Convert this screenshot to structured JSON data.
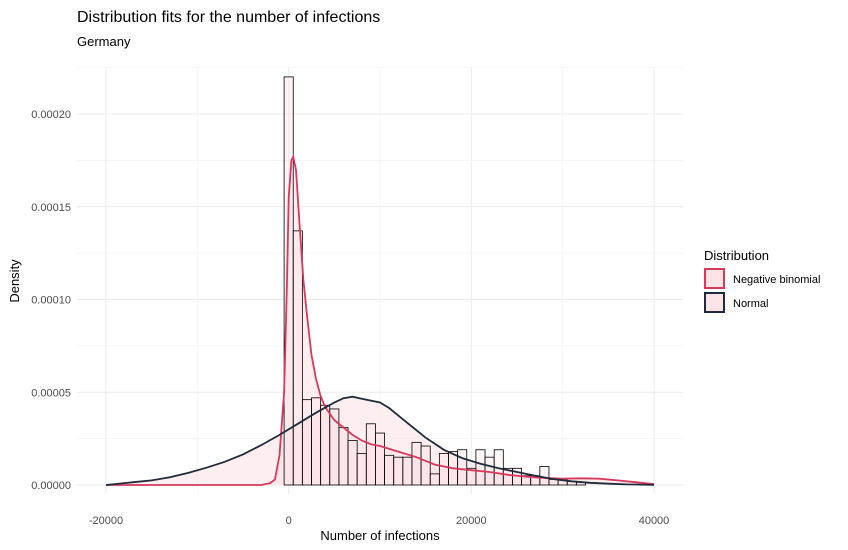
{
  "chart_data": {
    "type": "histogram_with_density",
    "title": "Distribution fits for the number of infections",
    "subtitle": "Germany",
    "xlabel": "Number of infections",
    "ylabel": "Density",
    "xlim": [
      -20000,
      40000
    ],
    "ylim": [
      0,
      0.00023
    ],
    "x_ticks": [
      -20000,
      0,
      20000,
      40000
    ],
    "x_tick_labels": [
      "-20000",
      "0",
      "20000",
      "40000"
    ],
    "y_ticks": [
      0,
      5e-05,
      0.0001,
      0.00015,
      0.0002
    ],
    "y_tick_labels": [
      "0.00000",
      "0.00005",
      "0.00010",
      "0.00015",
      "0.00020"
    ],
    "grid": true,
    "legend_position": "right",
    "legend": {
      "title": "Distribution",
      "entries": [
        {
          "label": "Negative binomial",
          "color": "#d6395e"
        },
        {
          "label": "Normal",
          "color": "#1f2b3c"
        }
      ]
    },
    "histogram": {
      "bin_width": 1000,
      "bin_starts": [
        -500,
        500,
        1500,
        2500,
        3500,
        4500,
        5500,
        6500,
        7500,
        8500,
        9500,
        10500,
        11500,
        12500,
        13500,
        14500,
        15500,
        16500,
        17500,
        18500,
        19500,
        20500,
        21500,
        22500,
        23500,
        24500,
        25500,
        26500,
        27500,
        28500,
        29500,
        30500,
        31500
      ],
      "densities": [
        0.00022,
        0.000137,
        4.6e-05,
        4.7e-05,
        4.3e-05,
        4.1e-05,
        3.1e-05,
        2.4e-05,
        1.7e-05,
        3.3e-05,
        2.8e-05,
        1.6e-05,
        1.5e-05,
        1.5e-05,
        2.3e-05,
        2.1e-05,
        6e-06,
        1.7e-05,
        1.8e-05,
        1.9e-05,
        9e-06,
        1.9e-05,
        1.5e-05,
        1.9e-05,
        9e-06,
        9e-06,
        5e-06,
        5e-06,
        1e-05,
        3e-06,
        3e-06,
        2e-06,
        1.5e-06
      ]
    },
    "series": [
      {
        "name": "Negative binomial",
        "color": "#d6395e",
        "fill": "#fbe3e6",
        "x": [
          -20000,
          -3000,
          -2000,
          -1500,
          -1000,
          -500,
          -200,
          0,
          300,
          500,
          800,
          1200,
          1600,
          2000,
          2500,
          3000,
          3500,
          4000,
          5000,
          6000,
          7000,
          8000,
          9000,
          10000,
          12000,
          14000,
          16000,
          18000,
          20000,
          22000,
          24000,
          26000,
          28000,
          30000,
          32000,
          34000,
          36000,
          38000,
          40000
        ],
        "y": [
          0,
          0,
          1e-06,
          3e-06,
          1.6e-05,
          5e-05,
          0.000105,
          0.000155,
          0.000175,
          0.000177,
          0.00017,
          0.00014,
          0.000111,
          9.2e-05,
          7e-05,
          5.7e-05,
          4.8e-05,
          4.2e-05,
          3.5e-05,
          3.1e-05,
          2.7e-05,
          2.4e-05,
          2.2e-05,
          2.1e-05,
          1.8e-05,
          1.5e-05,
          1.1e-05,
          9e-06,
          8e-06,
          7e-06,
          5.5e-06,
          4.5e-06,
          3.8e-06,
          3.4e-06,
          3.6e-06,
          3.4e-06,
          2.5e-06,
          1.5e-06,
          5e-07
        ]
      },
      {
        "name": "Normal",
        "color": "#1f2b3c",
        "fill": "#fbe3e6",
        "x": [
          -20000,
          -17000,
          -15000,
          -13000,
          -11000,
          -9000,
          -7000,
          -5000,
          -3000,
          -1000,
          1000,
          3000,
          5000,
          6000,
          7000,
          8000,
          9000,
          10000,
          11000,
          13000,
          15000,
          17000,
          19000,
          21000,
          23000,
          25000,
          27000,
          29000,
          31000,
          33000,
          35000,
          37000,
          40000
        ],
        "y": [
          0,
          1.5e-06,
          2.5e-06,
          4.2e-06,
          6.5e-06,
          9.3e-06,
          1.25e-05,
          1.65e-05,
          2.15e-05,
          2.7e-05,
          3.3e-05,
          3.9e-05,
          4.45e-05,
          4.68e-05,
          4.76e-05,
          4.65e-05,
          4.55e-05,
          4.45e-05,
          4.15e-05,
          3.35e-05,
          2.55e-05,
          1.9e-05,
          1.45e-05,
          1.15e-05,
          9e-06,
          7e-06,
          5e-06,
          3.2e-06,
          2e-06,
          1.2e-06,
          7e-07,
          3e-07,
          1e-07
        ]
      }
    ]
  }
}
